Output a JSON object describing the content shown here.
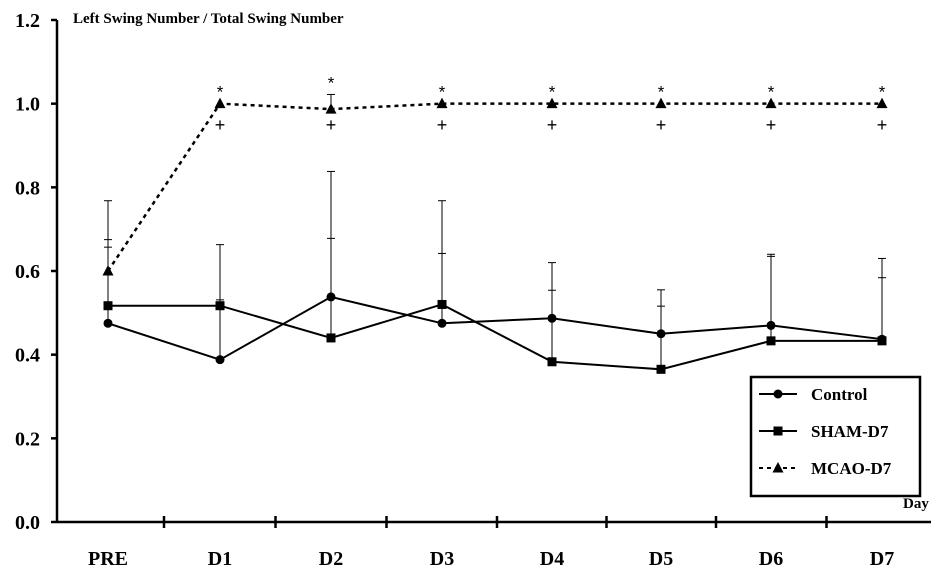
{
  "chart_data": {
    "type": "line",
    "ylabel": "Left Swing Number / Total Swing Number",
    "xlabel": "Day",
    "categories": [
      "PRE",
      "D1",
      "D2",
      "D3",
      "D4",
      "D5",
      "D6",
      "D7"
    ],
    "ylim": [
      0,
      1.2
    ],
    "yticks": [
      "0.0",
      "0.2",
      "0.4",
      "0.6",
      "0.8",
      "1.0",
      "1.2"
    ],
    "grid": false,
    "legend_position": "bottom-right",
    "series": [
      {
        "name": "Control",
        "marker": "circle",
        "line": "solid",
        "values": [
          0.475,
          0.388,
          0.538,
          0.475,
          0.487,
          0.45,
          0.47,
          0.437
        ],
        "error_upper": [
          0.675,
          0.531,
          0.838,
          0.642,
          0.62,
          0.555,
          0.64,
          0.584
        ]
      },
      {
        "name": "SHAM-D7",
        "marker": "square",
        "line": "solid",
        "values": [
          0.517,
          0.517,
          0.44,
          0.52,
          0.383,
          0.365,
          0.433,
          0.433
        ],
        "error_upper": [
          0.768,
          0.663,
          0.678,
          0.768,
          0.554,
          0.516,
          0.635,
          0.63
        ]
      },
      {
        "name": "MCAO-D7",
        "marker": "triangle",
        "line": "dashed",
        "values": [
          0.6,
          1.0,
          0.987,
          1.0,
          1.0,
          1.0,
          1.0,
          1.0
        ],
        "error_upper": [
          0.657,
          1.0,
          1.022,
          1.0,
          1.0,
          1.0,
          1.0,
          1.0
        ]
      }
    ],
    "annotations": {
      "star": {
        "text": "*",
        "categories": [
          "D1",
          "D2",
          "D3",
          "D4",
          "D5",
          "D6",
          "D7"
        ]
      },
      "plus": {
        "text": "+",
        "categories": [
          "D1",
          "D2",
          "D3",
          "D4",
          "D5",
          "D6",
          "D7"
        ]
      }
    }
  }
}
